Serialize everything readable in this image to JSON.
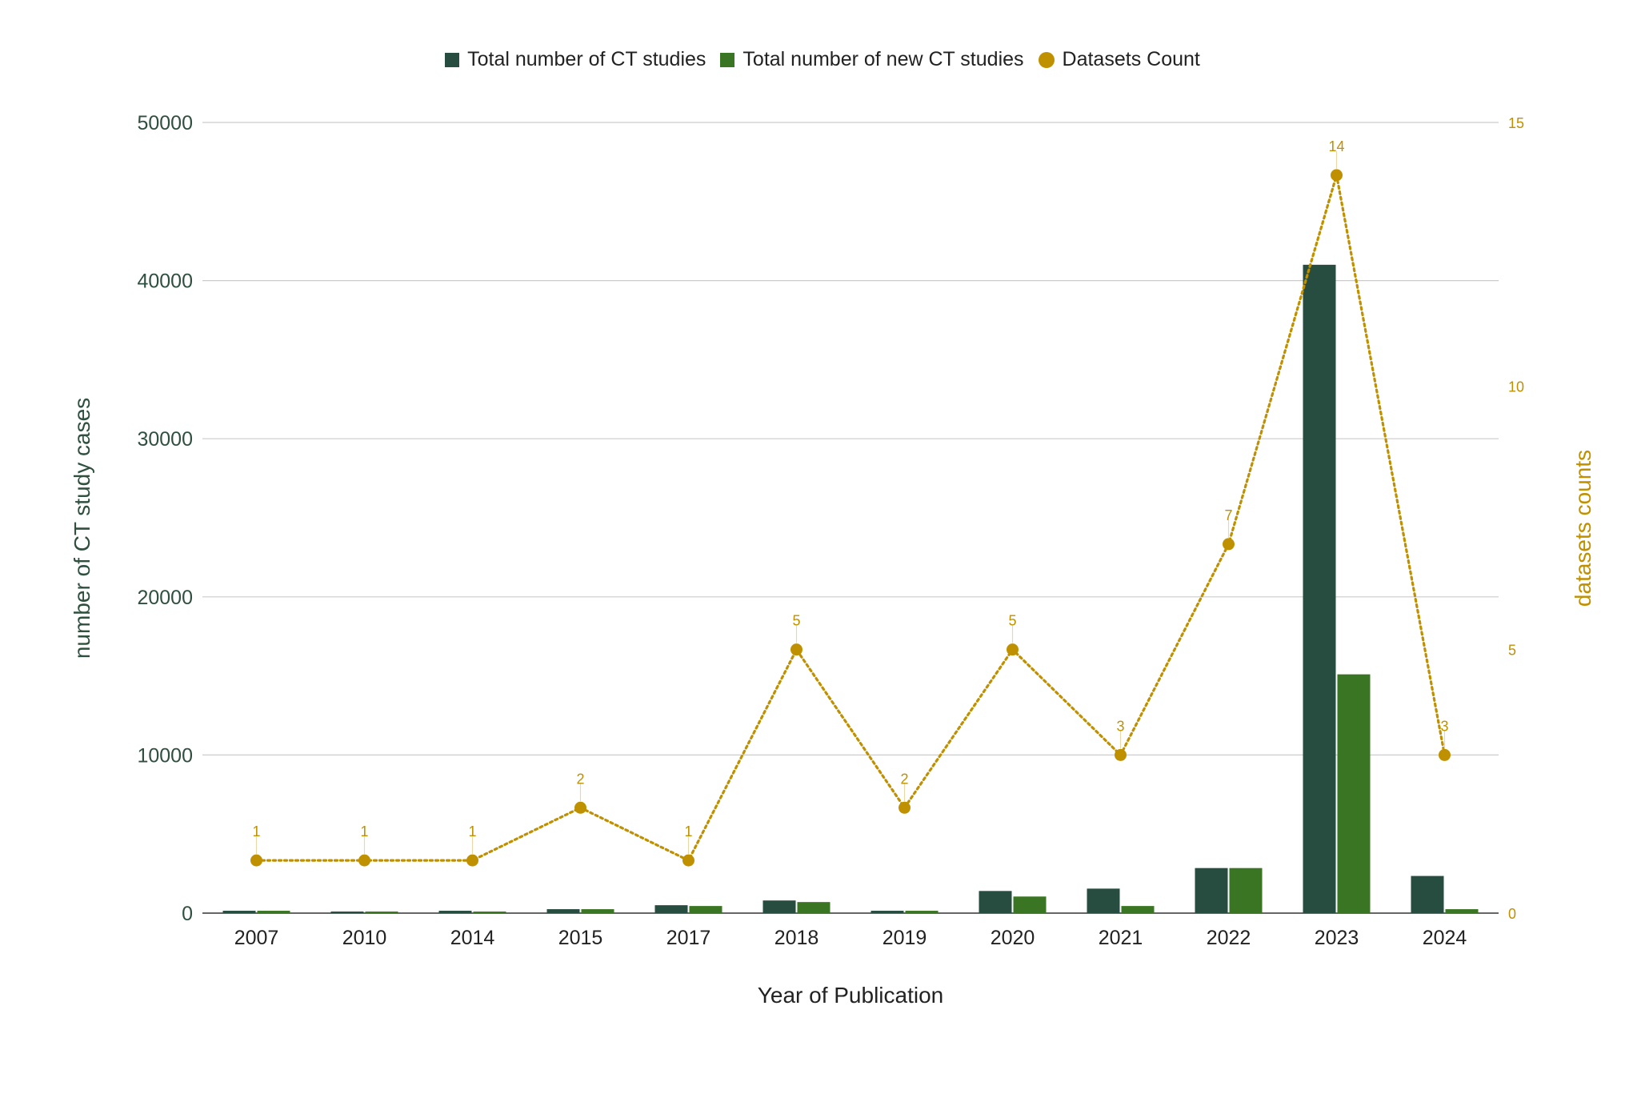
{
  "chart_data": {
    "type": "bar",
    "xlabel": "Year of Publication",
    "ylabel": "number of CT study cases",
    "y2label": "datasets counts",
    "ylim": [
      0,
      50000
    ],
    "y2lim": [
      0,
      15
    ],
    "yticks": [
      "0",
      "10000",
      "20000",
      "30000",
      "40000",
      "50000"
    ],
    "y2ticks": [
      "0",
      "5",
      "10",
      "15"
    ],
    "categories": [
      "2007",
      "2010",
      "2014",
      "2015",
      "2017",
      "2018",
      "2019",
      "2020",
      "2021",
      "2022",
      "2023",
      "2024"
    ],
    "series": [
      {
        "name": "Total number of CT studies",
        "type": "bar",
        "axis": "left",
        "values": [
          150,
          100,
          150,
          250,
          500,
          800,
          150,
          1400,
          1550,
          2850,
          41000,
          2350
        ]
      },
      {
        "name": "Total number of new CT studies",
        "type": "bar",
        "axis": "left",
        "values": [
          150,
          100,
          100,
          250,
          450,
          700,
          150,
          1050,
          450,
          2850,
          15100,
          250
        ]
      },
      {
        "name": "Datasets Count",
        "type": "line",
        "axis": "right",
        "line_style": "dotted",
        "values": [
          1,
          1,
          1,
          2,
          1,
          5,
          2,
          5,
          3,
          7,
          14,
          3
        ],
        "labels": [
          "1",
          "1",
          "1",
          "2",
          "1",
          "5",
          "2",
          "5",
          "3",
          "7",
          "14",
          "3"
        ]
      }
    ],
    "legend": "top-center",
    "grid": true
  },
  "colors": {
    "total": "#264d3f",
    "new": "#3a7523",
    "datasets": "#bf9000",
    "axis_text": "#2f4f3f",
    "grid": "#cccccc"
  }
}
